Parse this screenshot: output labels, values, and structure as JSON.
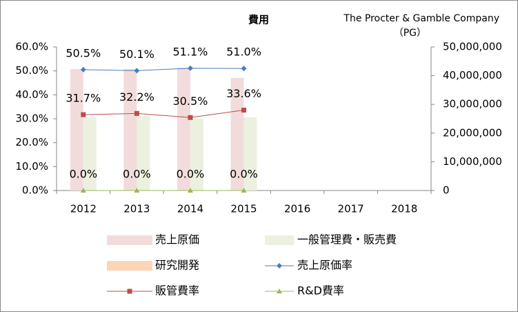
{
  "chart_data": {
    "type": "bar",
    "title": "費用",
    "subtitle": "The Procter & Gamble Company",
    "ticker": "（PG）",
    "categories": [
      "2012",
      "2013",
      "2014",
      "2015",
      "2016",
      "2017",
      "2018"
    ],
    "ylim": [
      0,
      60
    ],
    "yticks": [
      {
        "value": 0,
        "label": "0.0%"
      },
      {
        "value": 10,
        "label": "10.0%"
      },
      {
        "value": 20,
        "label": "20.0%"
      },
      {
        "value": 30,
        "label": "30.0%"
      },
      {
        "value": 40,
        "label": "40.0%"
      },
      {
        "value": 50,
        "label": "50.0%"
      },
      {
        "value": 60,
        "label": "60.0%"
      }
    ],
    "y2lim": [
      0,
      50000000
    ],
    "y2ticks": [
      0,
      {
        "value": 10000000,
        "label": "10,000,000"
      },
      {
        "value": 20000000,
        "label": "20,000,000"
      },
      {
        "value": 30000000,
        "label": "30,000,000"
      },
      {
        "value": 40000000,
        "label": "40,000,000"
      },
      {
        "value": 50000000,
        "label": "50,000,000"
      }
    ],
    "series": [
      {
        "name": "売上原価",
        "type": "bar",
        "axis": "y2",
        "color": "#f2dcdb",
        "values": [
          42300000,
          42300000,
          42800000,
          39200000,
          null,
          null,
          null
        ]
      },
      {
        "name": "一般管理費・販売費",
        "type": "bar",
        "axis": "y2",
        "color": "#ebf1de",
        "values": [
          25500000,
          26000000,
          25000000,
          25500000,
          null,
          null,
          null
        ]
      },
      {
        "name": "研究開発",
        "type": "bar",
        "axis": "y2",
        "color": "#fcd5b5",
        "values": [
          null,
          null,
          null,
          null,
          null,
          null,
          null
        ]
      },
      {
        "name": "売上原価率",
        "type": "line",
        "marker": "diamond",
        "color": "#4a7ebb",
        "values": [
          50.5,
          50.1,
          51.1,
          51.0,
          null,
          null,
          null
        ],
        "value_labels": [
          "50.5%",
          "50.1%",
          "51.1%",
          "51.0%",
          null,
          null,
          null
        ]
      },
      {
        "name": "販管費率",
        "type": "line",
        "marker": "square",
        "color": "#be4b48",
        "values": [
          31.7,
          32.2,
          30.5,
          33.6,
          null,
          null,
          null
        ],
        "value_labels": [
          "31.7%",
          "32.2%",
          "30.5%",
          "33.6%",
          null,
          null,
          null
        ]
      },
      {
        "name": "R&D費率",
        "type": "line",
        "marker": "triangle",
        "color": "#98b954",
        "values": [
          0,
          0,
          0,
          0,
          null,
          null,
          null
        ],
        "value_labels": [
          "0.0%",
          "0.0%",
          "0.0%",
          "0.0%",
          null,
          null,
          null
        ]
      }
    ]
  }
}
